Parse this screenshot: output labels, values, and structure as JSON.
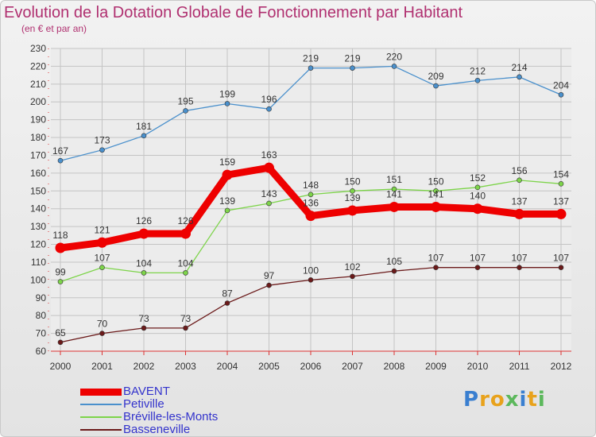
{
  "title": "Evolution de la Dotation Globale de Fonctionnement par Habitant",
  "subtitle": "(en € et par an)",
  "logo": {
    "text": "Proxiti",
    "letter_colors": [
      "#3a7fd0",
      "#e8a21c",
      "#e8a21c",
      "#5cb85c",
      "#3a7fd0",
      "#e8a21c",
      "#5cb85c"
    ]
  },
  "chart_data": {
    "type": "line",
    "categories": [
      "2000",
      "2001",
      "2002",
      "2003",
      "2004",
      "2005",
      "2006",
      "2007",
      "2008",
      "2009",
      "2010",
      "2011",
      "2012"
    ],
    "ylim": [
      60,
      230
    ],
    "yticks": [
      "60",
      "70",
      "80",
      "90",
      "100",
      "110",
      "120",
      "130",
      "140",
      "150",
      "160",
      "170",
      "180",
      "190",
      "200",
      "210",
      "220",
      "230"
    ],
    "grid": true,
    "legend_position": "bottom-left",
    "series": [
      {
        "name": "BAVENT",
        "color": "#ee0000",
        "emphasis": true,
        "values": [
          118,
          121,
          126,
          126,
          159,
          163,
          136,
          139,
          141,
          141,
          140,
          137,
          137
        ]
      },
      {
        "name": "Petiville",
        "color": "#4a90cc",
        "emphasis": false,
        "values": [
          167,
          173,
          181,
          195,
          199,
          196,
          219,
          219,
          220,
          209,
          212,
          214,
          204
        ]
      },
      {
        "name": "Bréville-les-Monts",
        "color": "#7dd44a",
        "emphasis": false,
        "values": [
          99,
          107,
          104,
          104,
          139,
          143,
          148,
          150,
          151,
          150,
          152,
          156,
          154
        ]
      },
      {
        "name": "Basseneville",
        "color": "#6b1a1a",
        "emphasis": false,
        "values": [
          65,
          70,
          73,
          73,
          87,
          97,
          100,
          102,
          105,
          107,
          107,
          107,
          107
        ]
      }
    ]
  }
}
